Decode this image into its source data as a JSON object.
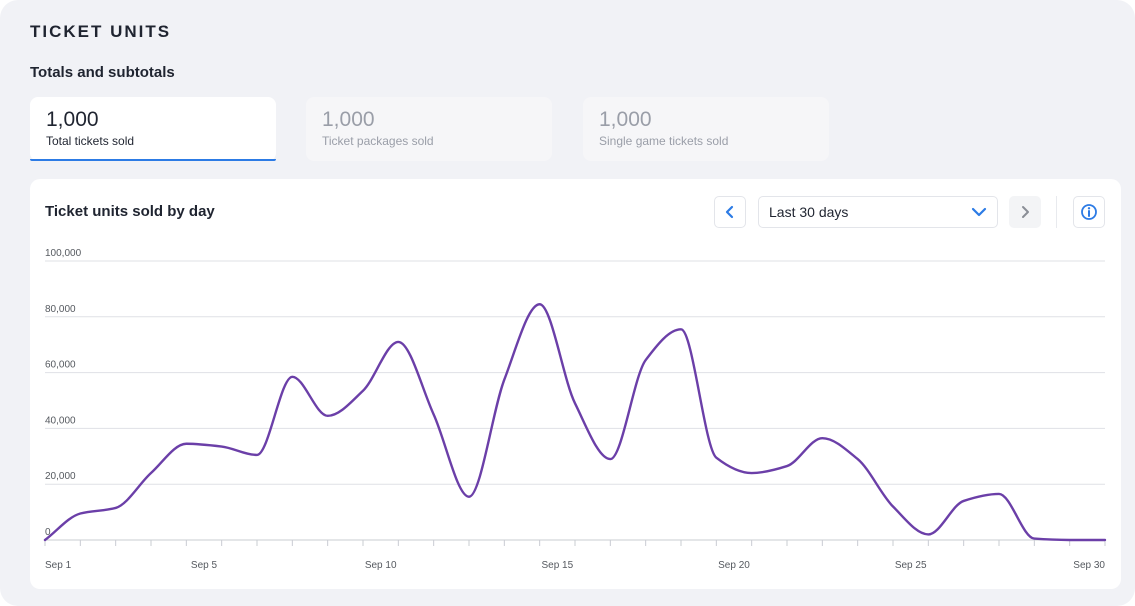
{
  "header": {
    "title": "TICKET UNITS",
    "subtitle": "Totals and subtotals"
  },
  "stats": [
    {
      "value": "1,000",
      "label": "Total tickets sold",
      "active": true
    },
    {
      "value": "1,000",
      "label": "Ticket packages sold",
      "active": false
    },
    {
      "value": "1,000",
      "label": "Single game tickets sold",
      "active": false
    }
  ],
  "colors": {
    "accent": "#2c7be5",
    "line": "#6b3fa8",
    "grid": "#dfe1e6"
  },
  "chart_card": {
    "title": "Ticket units sold by day",
    "range_label": "Last 30 days",
    "icons": {
      "prev": "chevron-left-icon",
      "next": "chevron-right-icon",
      "dropdown": "chevron-down-icon",
      "info": "info-icon"
    }
  },
  "chart_data": {
    "type": "line",
    "title": "Ticket units sold by day",
    "xlabel": "",
    "ylabel": "",
    "ylim": [
      0,
      100000
    ],
    "yticks": [
      0,
      20000,
      40000,
      60000,
      80000,
      100000
    ],
    "ytick_labels": [
      "0",
      "20,000",
      "40,000",
      "60,000",
      "80,000",
      "100,000"
    ],
    "x_tick_days": [
      1,
      5,
      10,
      15,
      20,
      25,
      30
    ],
    "x_tick_labels": [
      "Sep 1",
      "Sep 5",
      "Sep 10",
      "Sep 15",
      "Sep 20",
      "Sep 25",
      "Sep 30"
    ],
    "series": [
      {
        "name": "Ticket units",
        "x": [
          0.5,
          1.5,
          2.5,
          3.5,
          4.5,
          5.5,
          6.5,
          7.5,
          8.5,
          9.5,
          10.5,
          11.5,
          12.5,
          13.5,
          14.5,
          15.5,
          16.5,
          17.5,
          18.5,
          19.5,
          20.5,
          21.5,
          22.5,
          23.5,
          24.5,
          25.5,
          26.5,
          27.5,
          28.5,
          29.5,
          30.5
        ],
        "values": [
          0,
          9500,
          11500,
          24000,
          34500,
          33500,
          30500,
          58500,
          44500,
          53500,
          71000,
          45000,
          15500,
          57500,
          84500,
          49000,
          29000,
          64500,
          75500,
          29500,
          24000,
          26500,
          36500,
          29000,
          12000,
          2000,
          14000,
          16500,
          500,
          0,
          0
        ]
      }
    ]
  }
}
